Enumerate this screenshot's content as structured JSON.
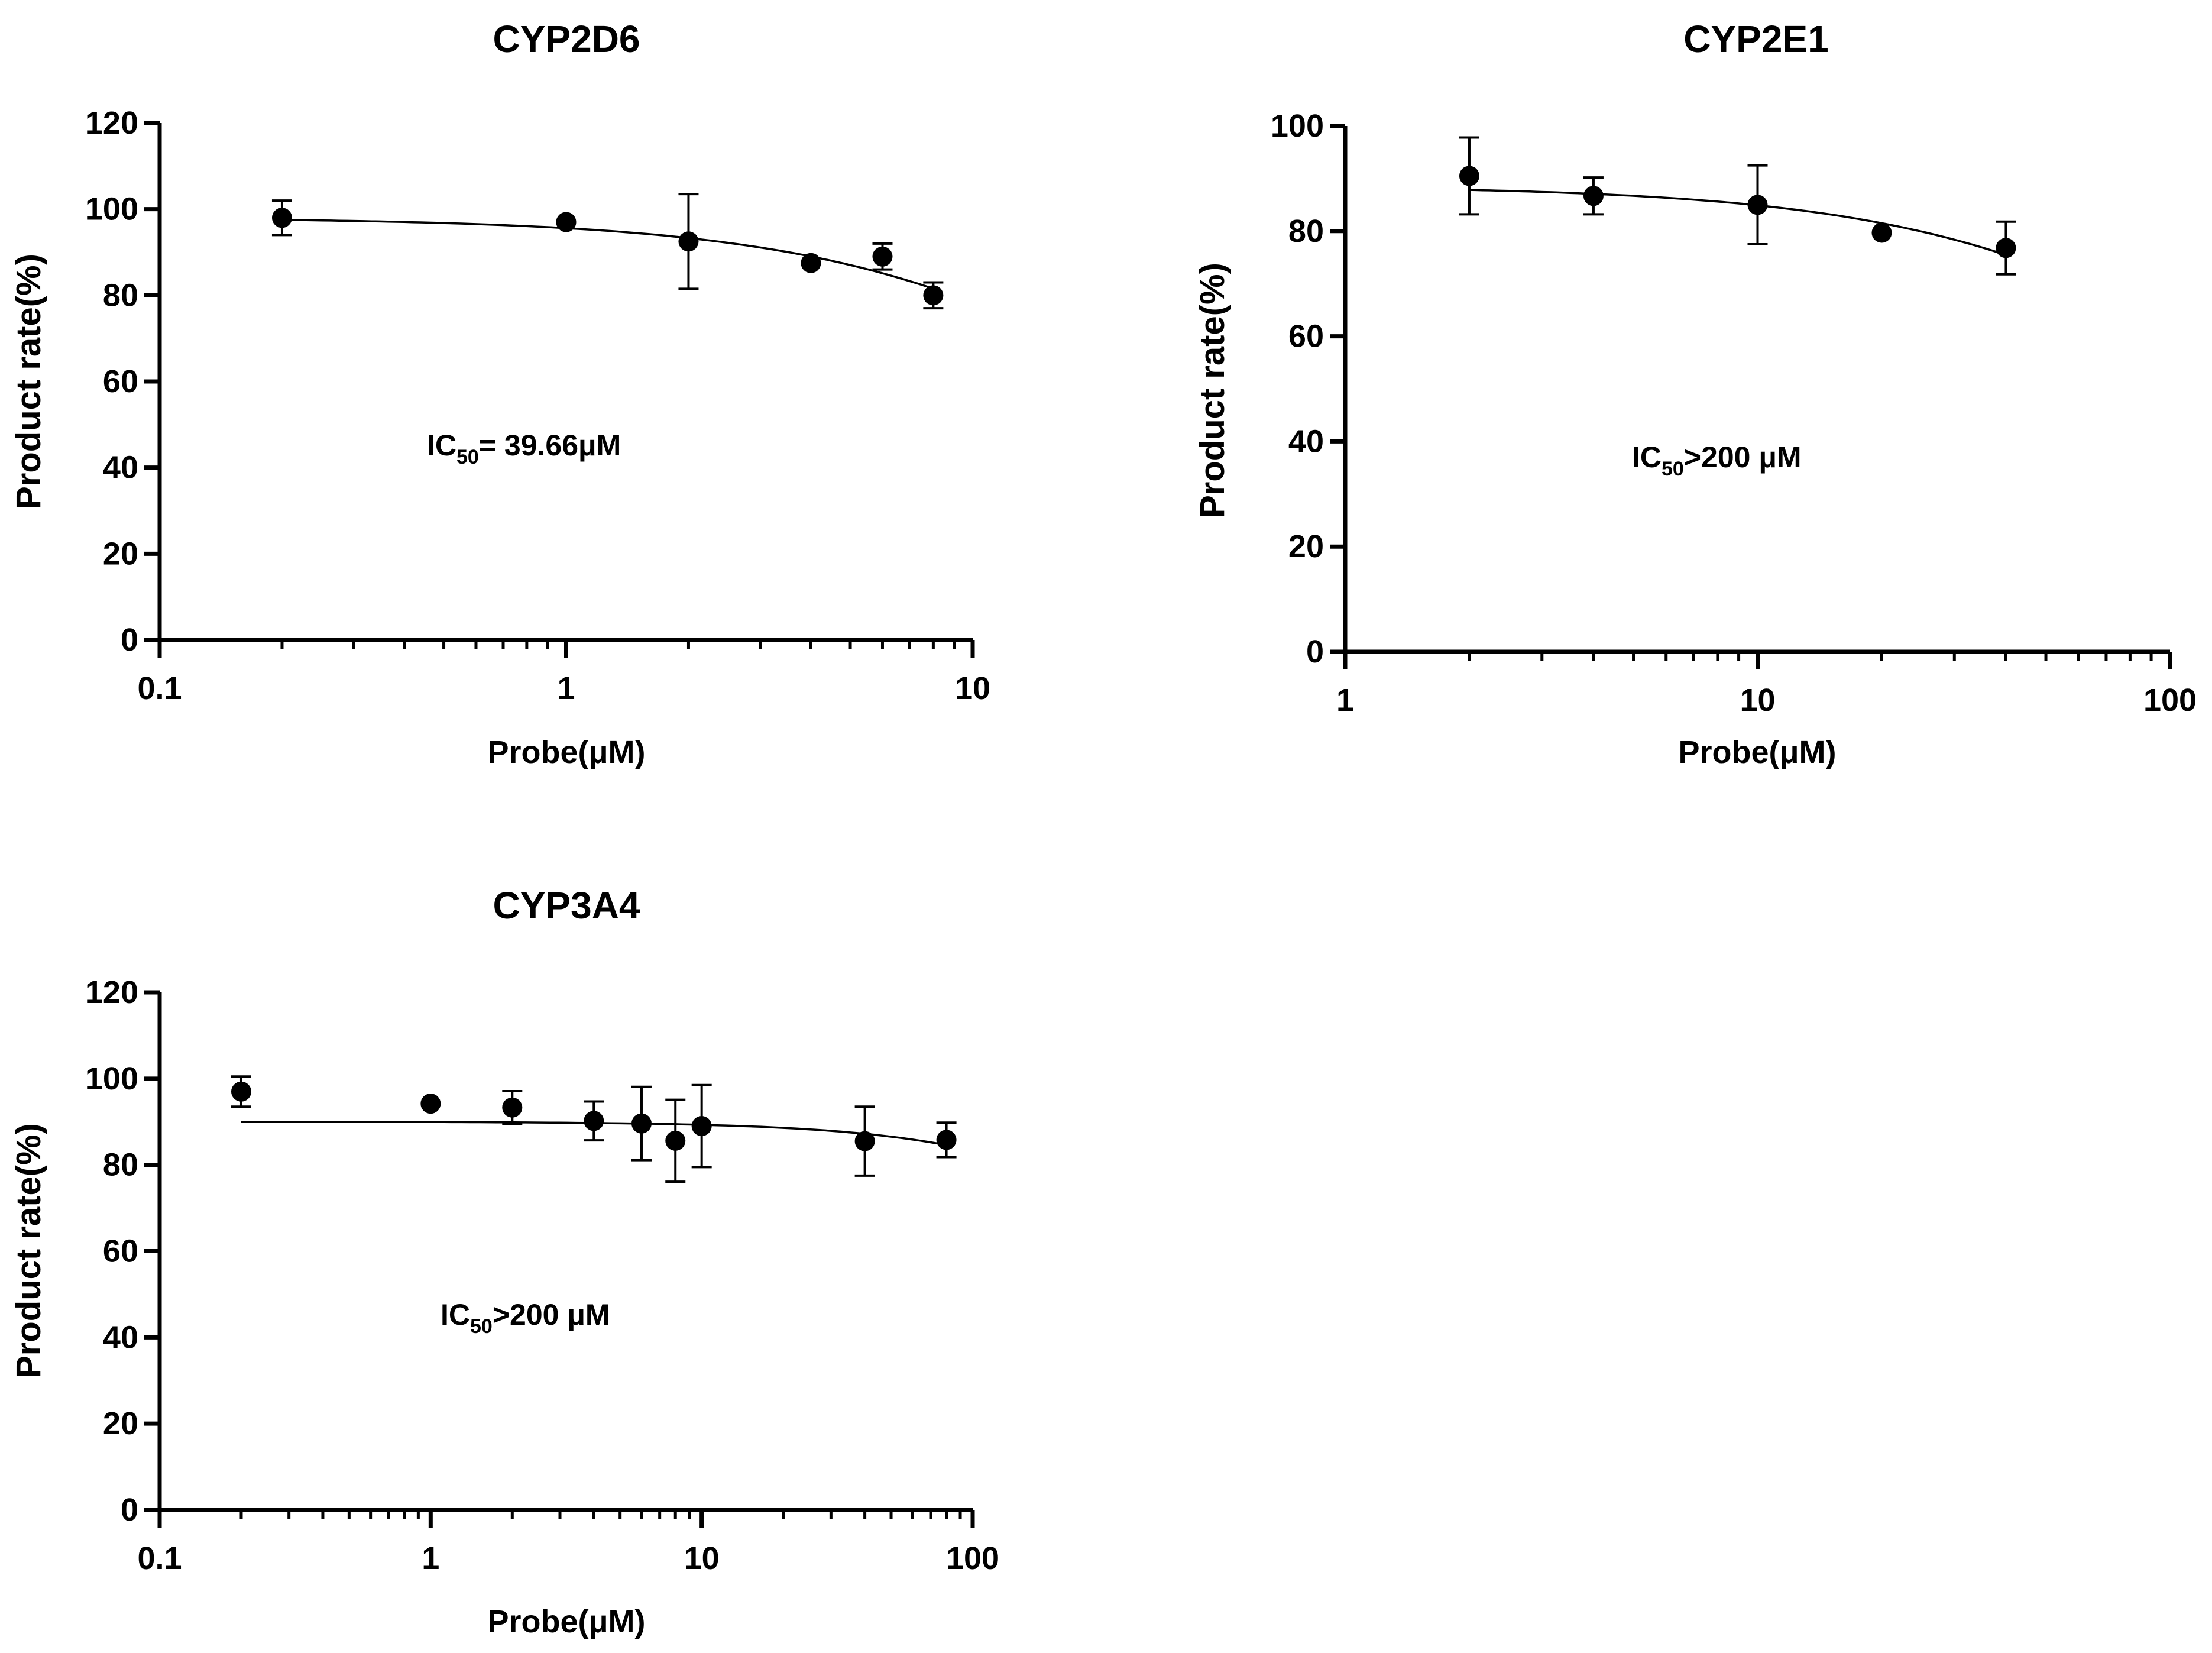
{
  "chart_data": [
    {
      "id": "cyp2d6",
      "type": "scatter",
      "title": "CYP2D6",
      "xlabel": "Probe(μM)",
      "ylabel": "Product rate(%)",
      "xscale": "log",
      "xlim": [
        0.1,
        10
      ],
      "ylim": [
        0,
        120
      ],
      "xticks": [
        0.1,
        1,
        10
      ],
      "xtick_labels": [
        "0.1",
        "1",
        "10"
      ],
      "yticks": [
        0,
        20,
        40,
        60,
        80,
        100,
        120
      ],
      "ytick_labels": [
        "0",
        "20",
        "40",
        "60",
        "80",
        "100",
        "120"
      ],
      "annotation": {
        "main": "IC",
        "sub": "50",
        "rest": "= 39.66μM"
      },
      "points": [
        {
          "x": 0.2,
          "y": 98,
          "err": 4
        },
        {
          "x": 1,
          "y": 97,
          "err": 0
        },
        {
          "x": 2,
          "y": 92.5,
          "err": 11
        },
        {
          "x": 4,
          "y": 87.5,
          "err": 0
        },
        {
          "x": 6,
          "y": 89,
          "err": 3
        },
        {
          "x": 8,
          "y": 80,
          "err": 3
        }
      ],
      "fit": {
        "top": 98,
        "ic50": 39.66,
        "hill": 1,
        "x_range": [
          0.2,
          8
        ]
      }
    },
    {
      "id": "cyp2e1",
      "type": "scatter",
      "title": "CYP2E1",
      "xlabel": "Probe(μM)",
      "ylabel": "Product rate(%)",
      "xscale": "log",
      "xlim": [
        1,
        100
      ],
      "ylim": [
        0,
        100
      ],
      "xticks": [
        1,
        10,
        100
      ],
      "xtick_labels": [
        "1",
        "10",
        "100"
      ],
      "yticks": [
        0,
        20,
        40,
        60,
        80,
        100
      ],
      "ytick_labels": [
        "0",
        "20",
        "40",
        "60",
        "80",
        "100"
      ],
      "annotation": {
        "main": "IC",
        "sub": "50",
        "rest": ">200 μM"
      },
      "points": [
        {
          "x": 2,
          "y": 90.5,
          "err": 7.3
        },
        {
          "x": 4,
          "y": 86.7,
          "err": 3.5
        },
        {
          "x": 10,
          "y": 85,
          "err": 7.5
        },
        {
          "x": 20,
          "y": 79.7,
          "err": 0
        },
        {
          "x": 40,
          "y": 76.8,
          "err": 5
        }
      ],
      "fit": {
        "top": 88.6,
        "ic50": 230,
        "hill": 1,
        "x_range": [
          2,
          40
        ]
      }
    },
    {
      "id": "cyp3a4",
      "type": "scatter",
      "title": "CYP3A4",
      "xlabel": "Probe(μM)",
      "ylabel": "Product rate(%)",
      "xscale": "log",
      "xlim": [
        0.1,
        100
      ],
      "ylim": [
        0,
        120
      ],
      "xticks": [
        0.1,
        1,
        10,
        100
      ],
      "xtick_labels": [
        "0.1",
        "1",
        "10",
        "100"
      ],
      "yticks": [
        0,
        20,
        40,
        60,
        80,
        100,
        120
      ],
      "ytick_labels": [
        "0",
        "20",
        "40",
        "60",
        "80",
        "100",
        "120"
      ],
      "annotation": {
        "main": "IC",
        "sub": "50",
        "rest": ">200 μM"
      },
      "points": [
        {
          "x": 0.2,
          "y": 97,
          "err": 3.5
        },
        {
          "x": 1,
          "y": 94.2,
          "err": 0
        },
        {
          "x": 2,
          "y": 93.3,
          "err": 3.8
        },
        {
          "x": 4,
          "y": 90.2,
          "err": 4.5
        },
        {
          "x": 6,
          "y": 89.6,
          "err": 8.5
        },
        {
          "x": 8,
          "y": 85.6,
          "err": 9.5
        },
        {
          "x": 10,
          "y": 89,
          "err": 9.5
        },
        {
          "x": 40,
          "y": 85.5,
          "err": 8
        },
        {
          "x": 80,
          "y": 85.8,
          "err": 4
        }
      ],
      "fit": {
        "top": 90,
        "ic50": 1250,
        "hill": 1,
        "x_range": [
          0.2,
          80
        ]
      }
    }
  ]
}
